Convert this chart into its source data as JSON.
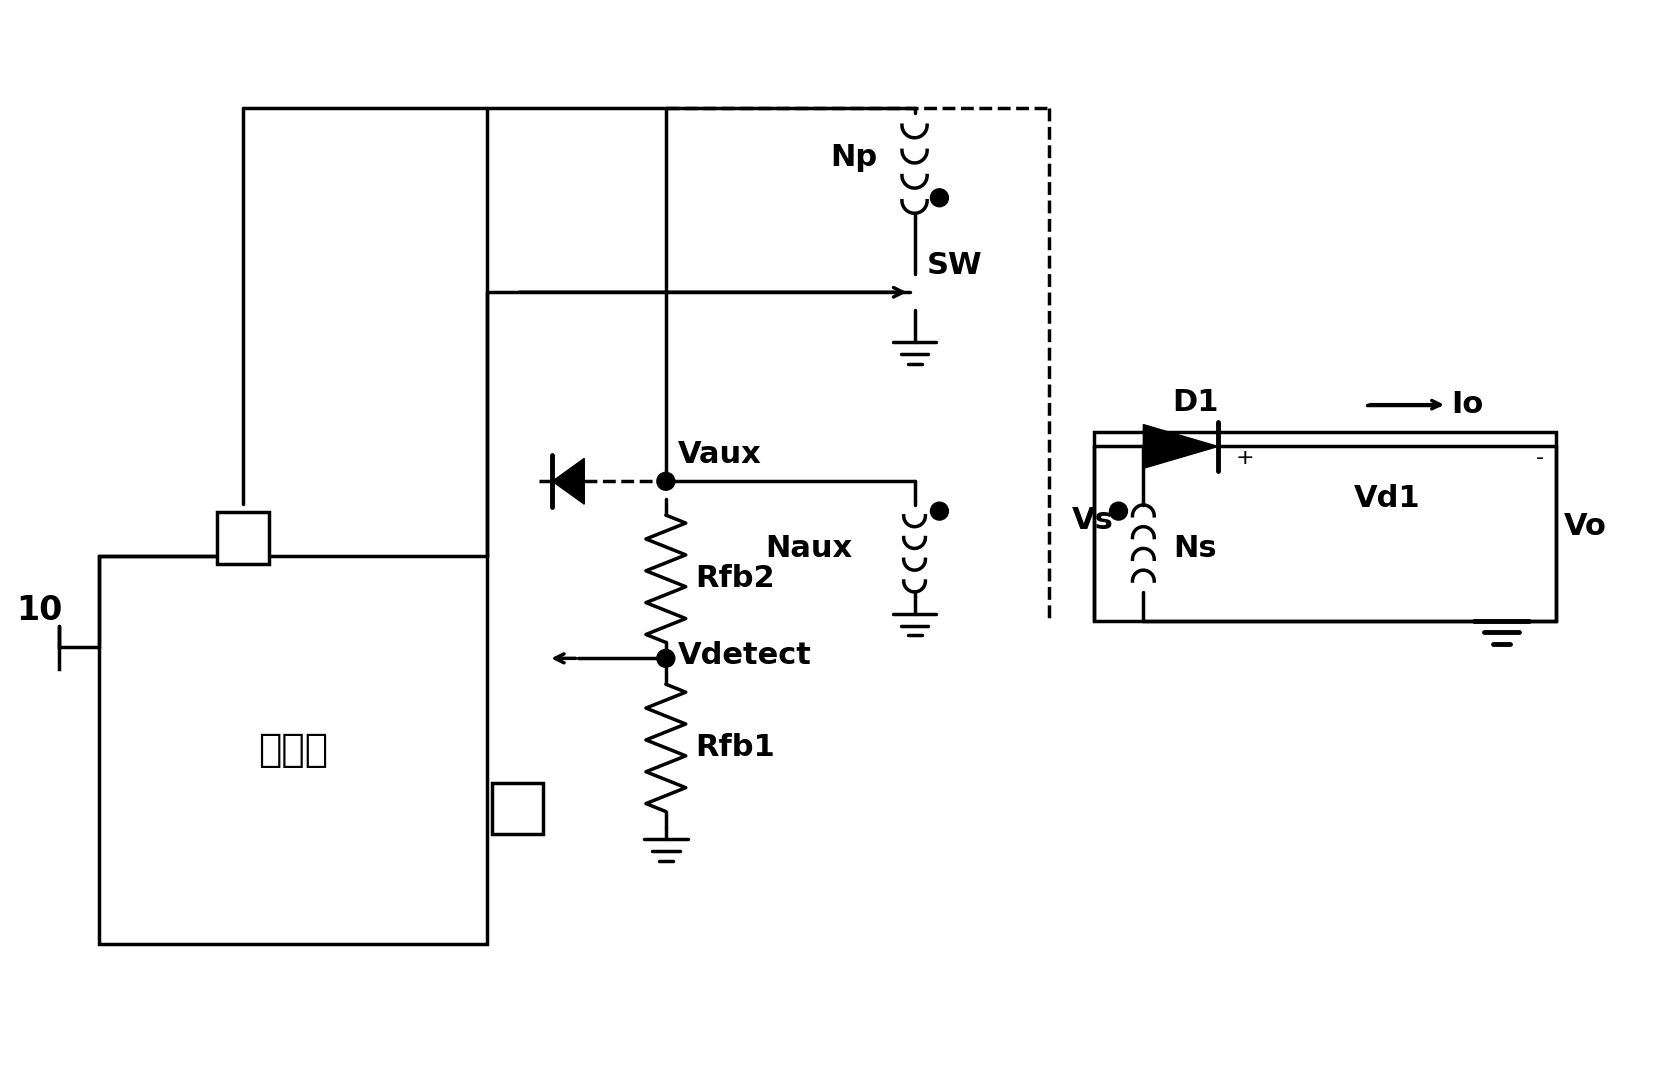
{
  "bg": "#ffffff",
  "lc": "#000000",
  "lw": 2.5,
  "fw": 16.56,
  "fh": 10.66,
  "labels": {
    "Np": "Np",
    "SW": "SW",
    "Vaux": "Vaux",
    "Naux": "Naux",
    "Rfb2": "Rfb2",
    "Vdetect": "Vdetect",
    "Rfb1": "Rfb1",
    "ctrl": "控制器",
    "num10": "10",
    "Vs": "Vs",
    "D1": "D1",
    "Vo": "Vo",
    "Io": "Io",
    "Ns": "Ns",
    "Vd1": "Vd1",
    "plus": "+",
    "minus": "-"
  }
}
